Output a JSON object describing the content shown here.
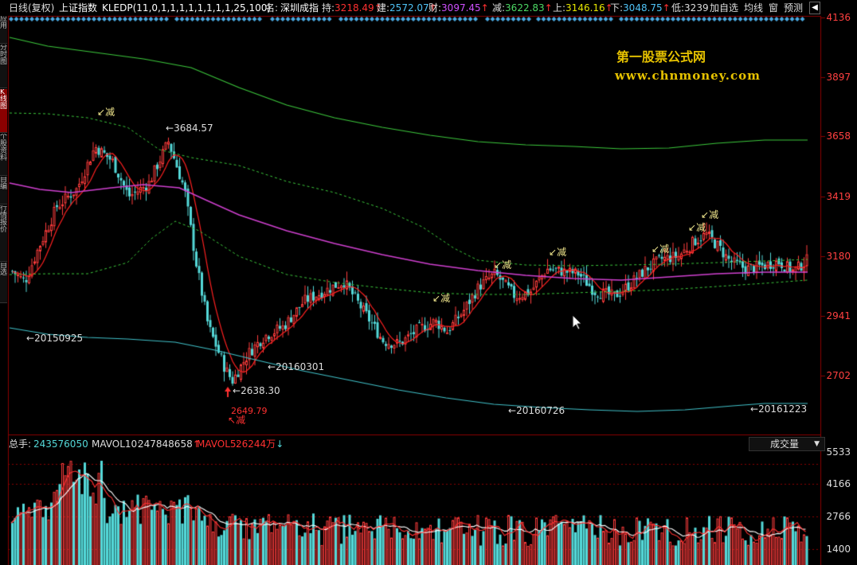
{
  "header": {
    "period": "日线(复权)",
    "index_name": "上证指数",
    "formula": "KLEDP(11,0,1,1,1,1,1,1,1,1,25,100)",
    "name_label": "名:",
    "name_value": "深圳成指",
    "items": [
      {
        "label": "持:",
        "value": "3218.49",
        "arrow": "↑",
        "color": "#ff3030"
      },
      {
        "label": "建:",
        "value": "2572.07",
        "arrow": "↑",
        "color": "#4fc3f7"
      },
      {
        "label": "财:",
        "value": "3097.45",
        "arrow": "↑",
        "color": "#d050ff"
      },
      {
        "label": "减:",
        "value": "3622.83",
        "arrow": "↑",
        "color": "#4cd964"
      },
      {
        "label": "上:",
        "value": "3146.16",
        "arrow": "↑",
        "color": "#e6e600"
      },
      {
        "label": "下:",
        "value": "3048.75",
        "arrow": "↑",
        "color": "#4fc3f7"
      },
      {
        "label": "低:",
        "value": "3239",
        "arrow": "",
        "color": "#dddddd"
      }
    ],
    "buttons": [
      "加自选",
      "均线",
      "窗",
      "预测"
    ],
    "close_glyph": "◀"
  },
  "side_tabs": [
    "应用",
    "分时图",
    "K线图",
    "个股资料",
    "自编",
    "行情报价",
    "自选"
  ],
  "side_tab_active": 2,
  "watermark": {
    "line1": "第一股票公式网",
    "line2": "www.chnmoney.com"
  },
  "price_axis": [
    "4136",
    "3897",
    "3658",
    "3419",
    "3180",
    "2941",
    "2702"
  ],
  "annotations": {
    "high": "3684.57",
    "low": "2638.30",
    "low_red": "2649.79",
    "dates": [
      "20150925",
      "20160301",
      "20160726",
      "20161223"
    ],
    "jian": "减"
  },
  "volume": {
    "total_label": "总手:",
    "total_value": "243576050",
    "mavol10_label": "MAVOL10:",
    "mavol10_value": "247848658",
    "mavol10_arrow": "↑",
    "mavol5_label": "MAVOL5:",
    "mavol5_value": "26244万",
    "mavol5_arrow": "↓",
    "dropdown": "成交量",
    "axis": [
      "5533",
      "4166",
      "2766",
      "1400"
    ]
  },
  "colors": {
    "up": "#ff3c3c",
    "down": "#54d8d8",
    "ma_red": "#ff2020",
    "ma_magenta": "#d040d0",
    "green_line": "#3cc83c",
    "cyan_line": "#40c0c8",
    "gridline": "#8b0000",
    "diamonds": "#4aa8e0"
  }
}
